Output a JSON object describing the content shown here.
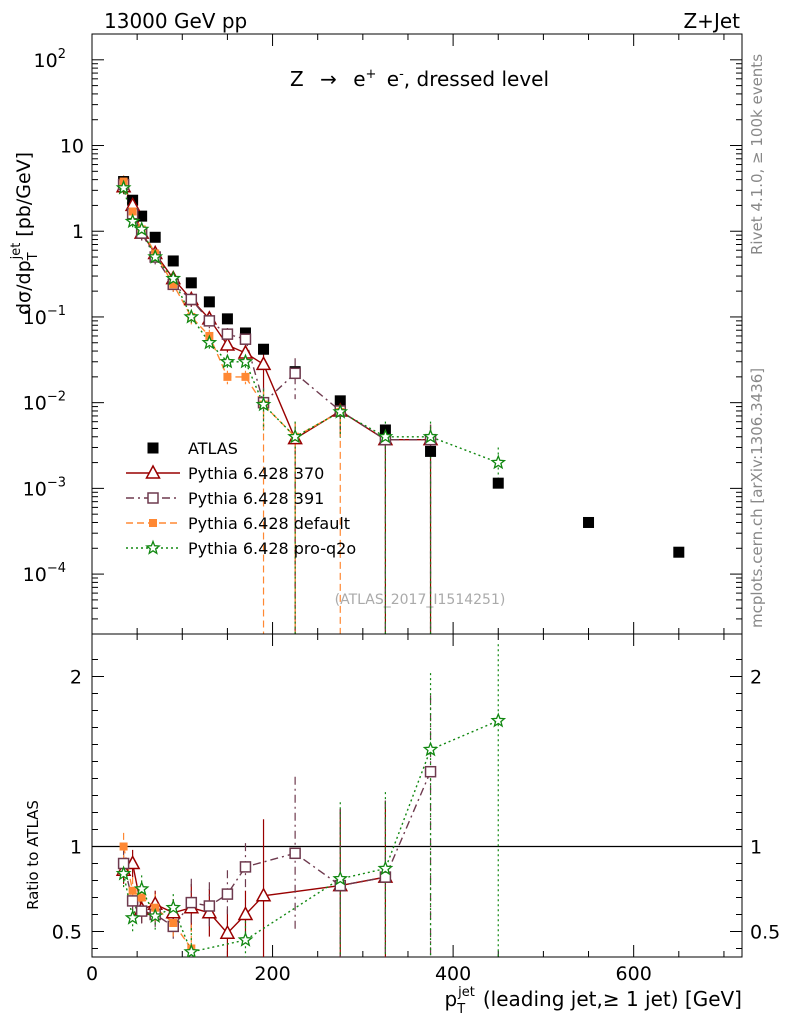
{
  "header": {
    "beam": "13000 GeV pp",
    "process": "Z+Jet",
    "subtitle_main": "Z",
    "subtitle_arrow": "→",
    "subtitle_e1": "e",
    "subtitle_e1_sup": "+",
    "subtitle_e2": "e",
    "subtitle_e2_sup": "-",
    "subtitle_rest": ", dressed level",
    "side_rivet": "Rivet 4.1.0, ≥ 100k events",
    "side_mcplots": "mcplots.cern.ch [arXiv:1306.3436]",
    "watermark": "(ATLAS_2017_I1514251)"
  },
  "axes": {
    "ylabel_main": "dσ/dp",
    "ylabel_sub": "T",
    "ylabel_sup": "jet",
    "ylabel_unit": "[pb/GeV]",
    "ylabel_ratio": "Ratio to ATLAS",
    "xlabel_p": "p",
    "xlabel_sub": "T",
    "xlabel_sup": "jet",
    "xlabel_rest": "(leading jet,≥ 1 jet) [GeV]",
    "xticks": [
      "0",
      "200",
      "400",
      "600"
    ],
    "yticks_main": [
      {
        "base": "10",
        "exp": "2"
      },
      {
        "base": "10",
        "exp": ""
      },
      {
        "base": "1",
        "exp": ""
      },
      {
        "base": "10",
        "exp": "−1"
      },
      {
        "base": "10",
        "exp": "−2"
      },
      {
        "base": "10",
        "exp": "−3"
      },
      {
        "base": "10",
        "exp": "−4"
      }
    ],
    "yticks_ratio": [
      "2",
      "1",
      "0.5"
    ],
    "yticks_ratio_right": [
      "2",
      "1",
      "0.5"
    ]
  },
  "legend": [
    {
      "label": "ATLAS",
      "color": "#000000",
      "marker": "filled-square"
    },
    {
      "label": "Pythia 6.428 370",
      "color": "#990000",
      "marker": "open-triangle"
    },
    {
      "label": "Pythia 6.428 391",
      "color": "#6e3a4e",
      "marker": "open-square"
    },
    {
      "label": "Pythia 6.428 default",
      "color": "#ff8833",
      "marker": "filled-square-small"
    },
    {
      "label": "Pythia 6.428 pro-q2o",
      "color": "#118811",
      "marker": "star"
    }
  ],
  "chart_data": [
    {
      "type": "scatter",
      "title": "13000 GeV pp  Z+Jet",
      "xlabel": "pT jet (leading jet, ≥ 1 jet) [GeV]",
      "ylabel": "dσ/dpT jet [pb/GeV]",
      "yscale": "log",
      "xlim": [
        0,
        720
      ],
      "ylim": [
        2e-05,
        200
      ],
      "series": [
        {
          "name": "ATLAS",
          "x": [
            35,
            45,
            55,
            70,
            90,
            110,
            130,
            150,
            170,
            190,
            225,
            275,
            325,
            375,
            450,
            550,
            650
          ],
          "y": [
            3.8,
            2.3,
            1.5,
            0.85,
            0.45,
            0.25,
            0.15,
            0.095,
            0.065,
            0.042,
            0.023,
            0.0105,
            0.0048,
            0.0027,
            0.00115,
            0.0004,
            0.00018
          ]
        },
        {
          "name": "Pythia 6.428 370",
          "x": [
            35,
            45,
            55,
            70,
            90,
            110,
            130,
            150,
            170,
            190,
            225,
            275,
            325,
            375
          ],
          "y": [
            3.3,
            2.0,
            0.95,
            0.55,
            0.28,
            0.16,
            0.095,
            0.047,
            0.038,
            0.028,
            0.0038,
            0.008,
            0.0037,
            0.0037
          ]
        },
        {
          "name": "Pythia 6.428 391",
          "x": [
            35,
            45,
            55,
            70,
            90,
            110,
            130,
            150,
            170,
            190,
            225,
            275,
            325,
            375
          ],
          "y": [
            3.5,
            1.6,
            0.95,
            0.5,
            0.24,
            0.16,
            0.09,
            0.063,
            0.055,
            0.01,
            0.022,
            0.008,
            0.0037,
            0.0037
          ]
        },
        {
          "name": "Pythia 6.428 default",
          "x": [
            35,
            45,
            55,
            70,
            90,
            110,
            130,
            150,
            170,
            190,
            225,
            275
          ],
          "y": [
            3.8,
            1.7,
            1.05,
            0.55,
            0.24,
            0.1,
            0.06,
            0.02,
            0.02,
            0.0095,
            0.004,
            0.0078
          ]
        },
        {
          "name": "Pythia 6.428 pro-q2o",
          "x": [
            35,
            45,
            55,
            70,
            90,
            110,
            130,
            150,
            170,
            190,
            225,
            275,
            325,
            375,
            450
          ],
          "y": [
            3.2,
            1.3,
            1.05,
            0.5,
            0.28,
            0.1,
            0.05,
            0.03,
            0.03,
            0.0095,
            0.004,
            0.0078,
            0.004,
            0.004,
            0.002
          ]
        }
      ]
    },
    {
      "type": "line",
      "title": "Ratio to ATLAS",
      "xlabel": "pT jet (leading jet, ≥ 1 jet) [GeV]",
      "ylabel": "Ratio to ATLAS",
      "xlim": [
        0,
        720
      ],
      "ylim": [
        0.35,
        2.25
      ],
      "series": [
        {
          "name": "Pythia 6.428 370",
          "x": [
            35,
            45,
            55,
            70,
            90,
            110,
            130,
            150,
            170,
            190,
            275,
            325
          ],
          "y": [
            0.86,
            0.9,
            0.63,
            0.66,
            0.61,
            0.64,
            0.61,
            0.49,
            0.6,
            0.71,
            0.77,
            0.82
          ]
        },
        {
          "name": "Pythia 6.428 391",
          "x": [
            35,
            45,
            55,
            70,
            90,
            110,
            130,
            150,
            170,
            225,
            275,
            325,
            375
          ],
          "y": [
            0.9,
            0.68,
            0.62,
            0.6,
            0.53,
            0.67,
            0.65,
            0.72,
            0.88,
            0.96,
            0.77,
            0.82,
            1.44
          ]
        },
        {
          "name": "Pythia 6.428 default",
          "x": [
            35,
            45,
            55,
            70,
            90,
            110
          ],
          "y": [
            1.0,
            0.74,
            0.7,
            0.64,
            0.55,
            0.4
          ]
        },
        {
          "name": "Pythia 6.428 pro-q2o",
          "x": [
            35,
            45,
            55,
            70,
            90,
            110,
            170,
            275,
            325,
            375,
            450
          ],
          "y": [
            0.84,
            0.58,
            0.75,
            0.59,
            0.64,
            0.38,
            0.45,
            0.81,
            0.87,
            1.57,
            1.74
          ]
        }
      ]
    }
  ]
}
